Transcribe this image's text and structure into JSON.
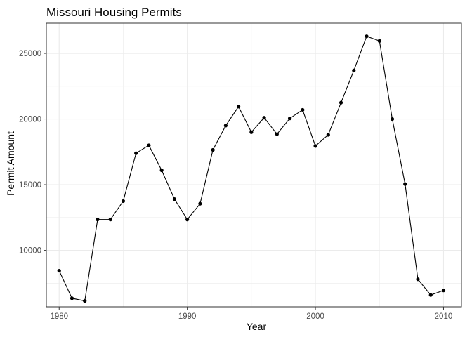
{
  "chart_data": {
    "type": "line",
    "title": "Missouri Housing Permits",
    "xlabel": "Year",
    "ylabel": "Permit Amount",
    "xlim": [
      1979,
      2011.4
    ],
    "ylim": [
      5700,
      27300
    ],
    "xticks": [
      1980,
      1990,
      2000,
      2010
    ],
    "yticks": [
      10000,
      15000,
      20000,
      25000
    ],
    "x_tick_labels": [
      "1980",
      "1990",
      "2000",
      "2010"
    ],
    "y_tick_labels": [
      "10000",
      "15000",
      "20000",
      "25000"
    ],
    "grid": true,
    "legend": "none",
    "colors": {
      "line": "#000000",
      "points": "#000000",
      "panel_border": "#333333",
      "grid": "#ebebeb"
    },
    "series": [
      {
        "x": [
          1980,
          1981,
          1982,
          1983,
          1984,
          1985,
          1986,
          1987,
          1988,
          1989,
          1990,
          1991,
          1992,
          1993,
          1994,
          1995,
          1996,
          1997,
          1998,
          1999,
          2000,
          2001,
          2002,
          2003,
          2004,
          2005,
          2006,
          2007,
          2008,
          2009,
          2010
        ],
        "values": [
          8450,
          6350,
          6150,
          12350,
          12350,
          13750,
          17400,
          18000,
          16100,
          13900,
          12350,
          13550,
          17650,
          19500,
          20950,
          19000,
          20100,
          18850,
          20050,
          20700,
          17950,
          18800,
          21250,
          23700,
          26300,
          25950,
          20000,
          15050,
          7800,
          6600,
          6950
        ]
      }
    ]
  }
}
